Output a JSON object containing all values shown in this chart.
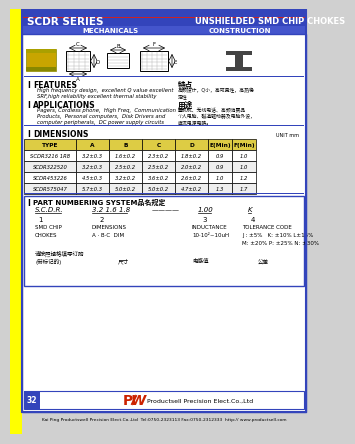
{
  "title_left": "SCDR SERIES",
  "title_right": "UNSHIELDED SMD CHIP CHOKES",
  "subtitle_left": "MECHANICALS",
  "subtitle_right": "CONSTRUCTION",
  "header_bg": "#3344bb",
  "header_text_color": "#ffffff",
  "red_line_color": "#cc2222",
  "yellow_sidebar_color": "#ffff00",
  "features_title": "FEATURES",
  "features_text1": "High frequency design,  excellent Q value excellent",
  "features_text2": "SRF,high reliability excellent thermal stability",
  "applications_title": "APPLICATIONS",
  "applications_text1": "Pagers, Cordless phone,  High Freq,  Communication",
  "applications_text2": "Products,  Personal computers,  Disk Drivers and",
  "applications_text3": "computer peripherals,  DC power supply circuits",
  "chinese_feature_title": "特点",
  "chinese_feature_line1": "高频设计，Q小，高可靠性，高热稳",
  "chinese_feature_line2": "定性",
  "chinese_app_title": "用途",
  "chinese_app_line1": "衋机机、无线电话、高频消费品",
  "chinese_app_line2": "个人电脑、磁道驱动器及电脑外设，",
  "chinese_app_line3": "直流电源电路。",
  "dimensions_title": "DIMENSIONS",
  "unit_text": "UNIT mm",
  "table_header": [
    "TYPE",
    "A",
    "B",
    "C",
    "D",
    "E(Min)",
    "F(Min)"
  ],
  "table_header_bg": "#ddcc44",
  "table_rows": [
    [
      "SCDR3216 1R8",
      "3.2±0.3",
      "1.6±0.2",
      "2.3±0.2",
      "1.8±0.2",
      "0.9",
      "1.0"
    ],
    [
      "SCDR322520",
      "3.2±0.3",
      "2.5±0.2",
      "2.5±0.2",
      "2.0±0.2",
      "0.9",
      "1.0"
    ],
    [
      "SCDR453226",
      "4.5±0.3",
      "3.2±0.2",
      "3.6±0.2",
      "2.6±0.2",
      "1.0",
      "1.2"
    ],
    [
      "SCDR575047",
      "5.7±0.3",
      "5.0±0.2",
      "5.0±0.2",
      "4.7±0.2",
      "1.3",
      "1.7"
    ]
  ],
  "part_numbering_title": "PART NUMBERING SYSTEM品名规定",
  "pn_items": [
    "S.C.D.R.",
    "3.2 1.6 1.8",
    "————",
    "1.00",
    "K"
  ],
  "pn_numbers": [
    "1",
    "2",
    "3",
    "4"
  ],
  "pn_label1": "SMD CHIP",
  "pn_label2": "DIMENSIONS",
  "pn_label3": "INDUCTANCE",
  "pn_label4": "TOLERANCE CODE",
  "pn_label5": "CHOKES",
  "pn_label6": "A · B·C  DIM",
  "pn_label7": "10·10²~10uH",
  "pn_label8": "J : ±5%   K: ±10% L±15%",
  "pn_label9": "M: ±20% P: ±25% N: ±30%",
  "chinese_bottom1": "请按照规格填写订购",
  "chinese_bottom2": "(带标记的)",
  "chinese_bottom3": "尺寸",
  "chinese_bottom4": "电感值",
  "chinese_bottom5": "公差",
  "company_name": "Productsell Precision Elect.Co.,Ltd",
  "footer_text": "Kai Ping Productswell Precision Elect.Co.,Ltd  Tel:0750-2323113 Fax:0750-2312333  http:// www.productsell.com",
  "page_number": "32"
}
